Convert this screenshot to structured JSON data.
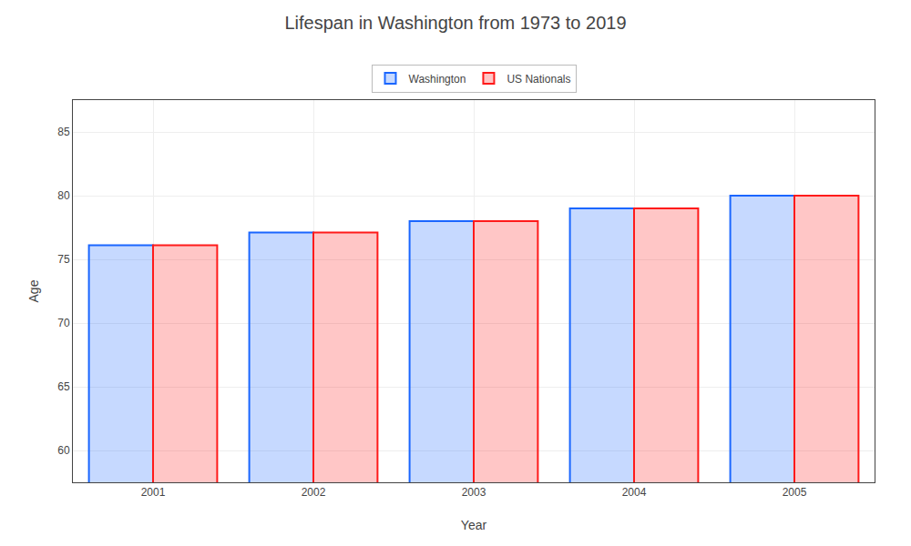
{
  "chart_data": {
    "type": "bar",
    "title": "Lifespan in Washington from 1973 to 2019",
    "xlabel": "Year",
    "ylabel": "Age",
    "categories": [
      "2001",
      "2002",
      "2003",
      "2004",
      "2005"
    ],
    "series": [
      {
        "name": "Washington",
        "color": "#1a66ff",
        "values": [
          76.1,
          77.1,
          78.0,
          79.0,
          80.0
        ]
      },
      {
        "name": "US Nationals",
        "color": "#ff1a1a",
        "values": [
          76.1,
          77.1,
          78.0,
          79.0,
          80.0
        ]
      }
    ],
    "ylim": [
      57.5,
      87.5
    ],
    "yticks": [
      60,
      65,
      70,
      75,
      80,
      85
    ],
    "grid": true,
    "legend": "top"
  }
}
